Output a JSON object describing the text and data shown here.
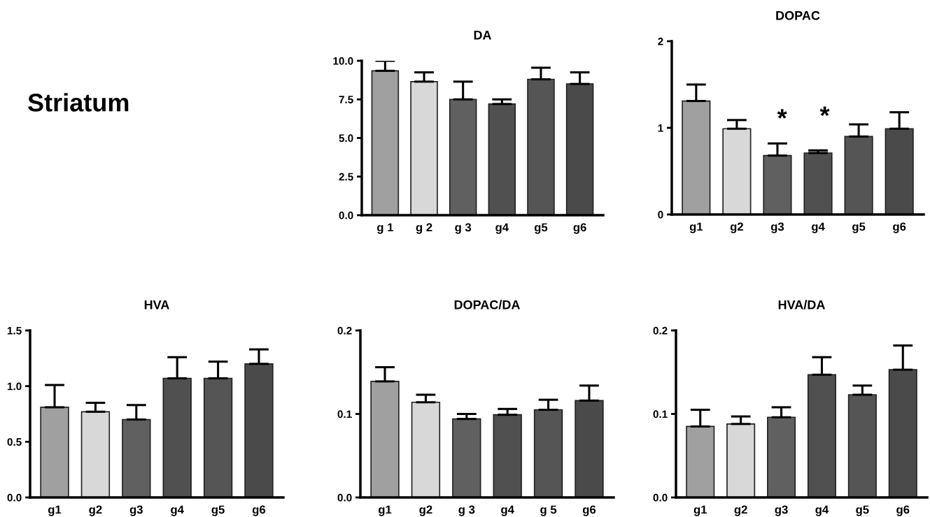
{
  "chart_data": [
    {
      "type": "other",
      "annotations": [
        "Striatum"
      ]
    },
    {
      "type": "bar",
      "title": "DA",
      "categories": [
        "g 1",
        "g 2",
        "g 3",
        "g4",
        "g5",
        "g6"
      ],
      "values": [
        9.35,
        8.65,
        7.5,
        7.2,
        8.8,
        8.5
      ],
      "errors": [
        [
          9.35,
          10.0
        ],
        [
          8.65,
          9.25
        ],
        [
          7.5,
          8.65
        ],
        [
          7.2,
          7.5
        ],
        [
          8.8,
          9.55
        ],
        [
          8.5,
          9.25
        ]
      ],
      "colors": [
        "#a0a0a0",
        "#d8d8d8",
        "#606060",
        "#505050",
        "#555555",
        "#4a4a4a"
      ],
      "ylim": [
        0,
        10
      ],
      "yticks": [
        {
          "value": 0,
          "label": "0.0"
        },
        2.5,
        {
          "value": 5,
          "label": "5.0"
        },
        7.5,
        {
          "value": 10,
          "label": "10.0"
        }
      ],
      "grid": false
    },
    {
      "type": "bar",
      "title": "DOPAC",
      "categories": [
        "g1",
        "g2",
        "g3",
        "g4",
        "g5",
        "g6"
      ],
      "values": [
        1.31,
        0.99,
        0.68,
        0.71,
        0.9,
        0.99
      ],
      "errors": [
        [
          1.31,
          1.5
        ],
        [
          0.99,
          1.09
        ],
        [
          0.68,
          0.82
        ],
        [
          0.71,
          0.74
        ],
        [
          0.9,
          1.04
        ],
        [
          0.99,
          1.18
        ]
      ],
      "colors": [
        "#a0a0a0",
        "#d8d8d8",
        "#606060",
        "#505050",
        "#555555",
        "#4a4a4a"
      ],
      "ylim": [
        0,
        2
      ],
      "yticks": [
        0,
        1,
        2
      ],
      "grid": false,
      "annotations": [
        "*",
        "*"
      ]
    },
    {
      "type": "bar",
      "title": "HVA",
      "categories": [
        "g1",
        "g2",
        "g3",
        "g4",
        "g5",
        "g6"
      ],
      "values": [
        0.81,
        0.77,
        0.7,
        1.07,
        1.07,
        1.2
      ],
      "errors": [
        [
          0.81,
          1.01
        ],
        [
          0.77,
          0.85
        ],
        [
          0.7,
          0.83
        ],
        [
          1.07,
          1.26
        ],
        [
          1.07,
          1.22
        ],
        [
          1.2,
          1.33
        ]
      ],
      "colors": [
        "#a0a0a0",
        "#d8d8d8",
        "#606060",
        "#505050",
        "#555555",
        "#4a4a4a"
      ],
      "ylim": [
        0,
        1.5
      ],
      "yticks": [
        {
          "value": 0,
          "label": "0.0"
        },
        0.5,
        {
          "value": 1,
          "label": "1.0"
        },
        1.5
      ],
      "grid": false
    },
    {
      "type": "bar",
      "title": "DOPAC/DA",
      "categories": [
        "g1",
        "g2",
        "g 3",
        "g4",
        "g 5",
        "g6"
      ],
      "values": [
        0.139,
        0.114,
        0.094,
        0.099,
        0.105,
        0.116
      ],
      "errors": [
        [
          0.139,
          0.156
        ],
        [
          0.114,
          0.123
        ],
        [
          0.094,
          0.1
        ],
        [
          0.099,
          0.106
        ],
        [
          0.105,
          0.117
        ],
        [
          0.116,
          0.134
        ]
      ],
      "colors": [
        "#a0a0a0",
        "#d8d8d8",
        "#606060",
        "#505050",
        "#555555",
        "#4a4a4a"
      ],
      "ylim": [
        0,
        0.2
      ],
      "yticks": [
        {
          "value": 0,
          "label": "0.0"
        },
        0.1,
        0.2
      ],
      "grid": false
    },
    {
      "type": "bar",
      "title": "HVA/DA",
      "categories": [
        "g1",
        "g2",
        "g3",
        "g4",
        "g5",
        "g6"
      ],
      "values": [
        0.085,
        0.088,
        0.096,
        0.147,
        0.123,
        0.153
      ],
      "errors": [
        [
          0.085,
          0.105
        ],
        [
          0.088,
          0.097
        ],
        [
          0.096,
          0.108
        ],
        [
          0.147,
          0.168
        ],
        [
          0.123,
          0.134
        ],
        [
          0.153,
          0.182
        ]
      ],
      "colors": [
        "#a0a0a0",
        "#d8d8d8",
        "#606060",
        "#505050",
        "#555555",
        "#4a4a4a"
      ],
      "ylim": [
        0,
        0.2
      ],
      "yticks": [
        {
          "value": 0,
          "label": "0.0"
        },
        0.1,
        0.2
      ],
      "grid": false
    }
  ]
}
